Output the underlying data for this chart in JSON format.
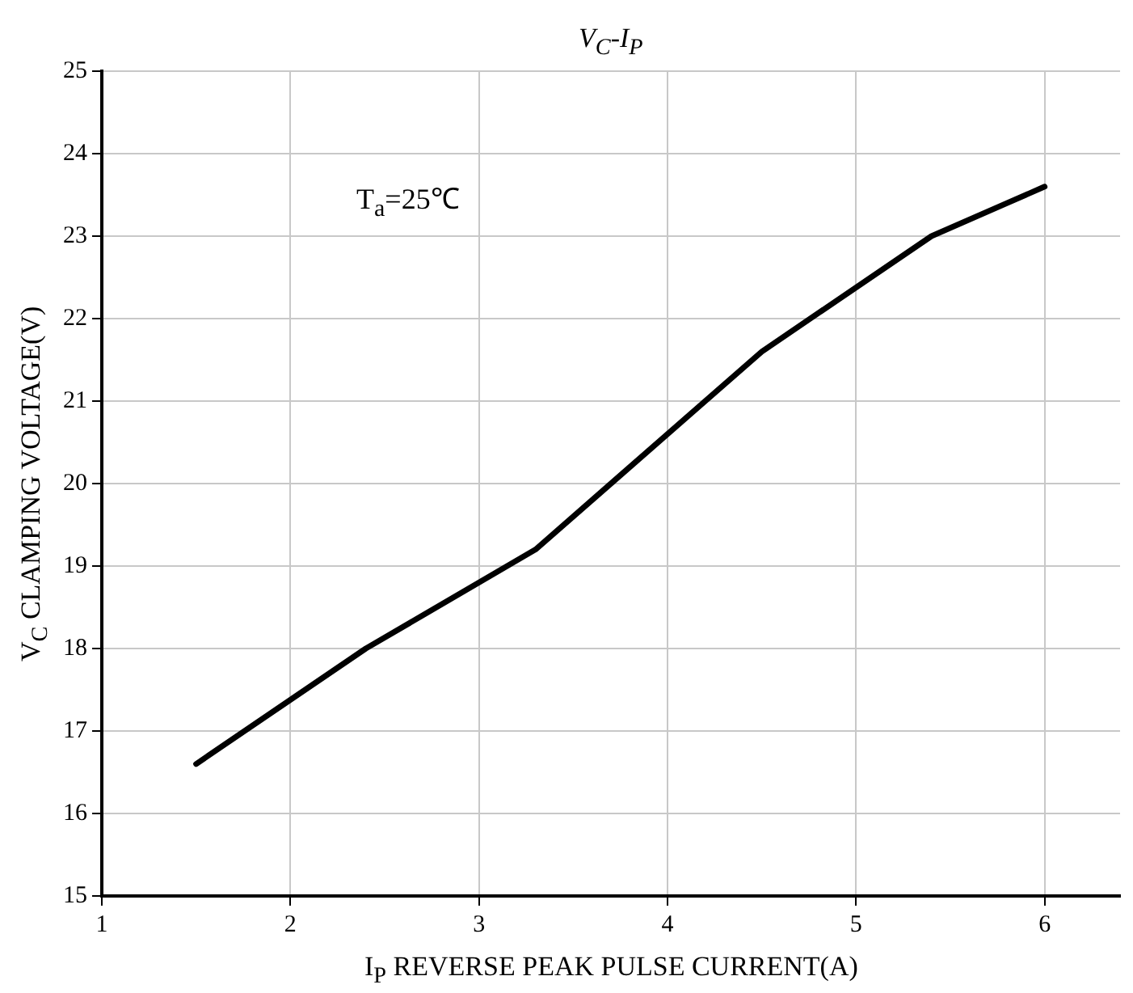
{
  "chart_data": {
    "type": "line",
    "title": "V$_{C}$-I$_{P}$",
    "xlabel": "I$_{P}$  REVERSE PEAK PULSE CURRENT(A)",
    "ylabel": "V$_{C}$ CLAMPING VOLTAGE(V)",
    "annotations": [
      "T$_{a}$=25℃"
    ],
    "x": [
      1.5,
      2.4,
      3.3,
      4.5,
      5.4,
      6
    ],
    "series": [
      {
        "color": "#000000",
        "values": [
          16.6,
          18.0,
          19.2,
          21.6,
          23.0,
          23.6
        ]
      }
    ],
    "xlim": [
      1,
      6.4
    ],
    "xticks": [
      1,
      2,
      3,
      4,
      5,
      6
    ],
    "ylim": [
      15,
      25
    ],
    "yticks": [
      15,
      16,
      17,
      18,
      19,
      20,
      21,
      22,
      23,
      24,
      25
    ],
    "grid": true,
    "legend": false,
    "marker": "none",
    "line_style": "solid"
  }
}
